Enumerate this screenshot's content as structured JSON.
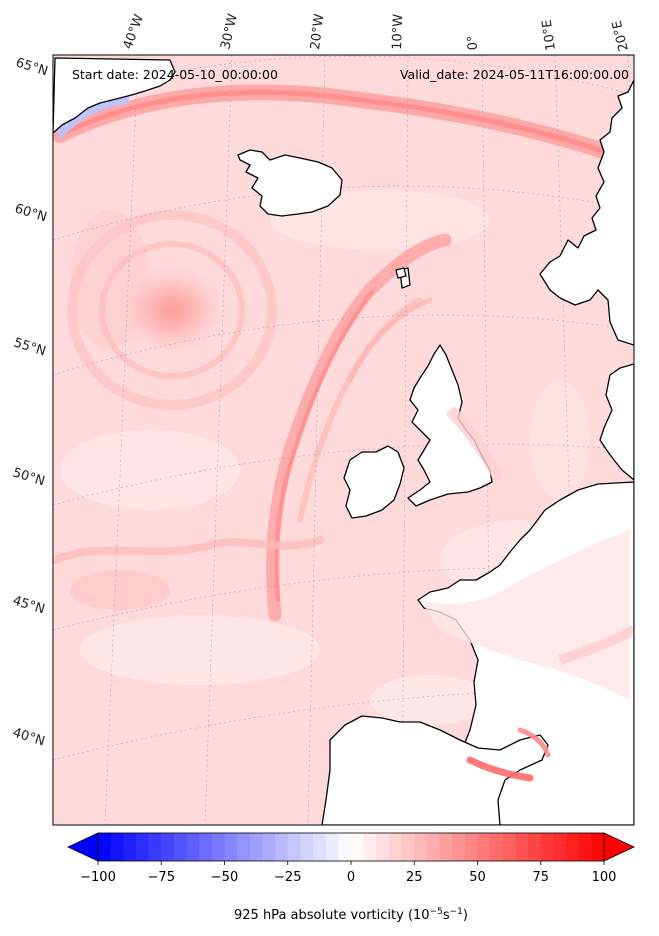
{
  "header": {
    "start_date": "Start date: 2024-05-10_00:00:00",
    "valid_date": "Valid_date: 2024-05-11T16:00:00.00"
  },
  "map": {
    "projection": "conic",
    "lon_labels": [
      "40°W",
      "30°W",
      "20°W",
      "10°W",
      "0°",
      "10°E",
      "20°E"
    ],
    "lat_labels": [
      "65°N",
      "60°N",
      "55°N",
      "50°N",
      "45°N",
      "40°N"
    ],
    "field": "925 hPa absolute vorticity",
    "coastline_color": "#000000",
    "land_mask_color": "#ffffff"
  },
  "colorbar": {
    "colormap": "bwr",
    "min": -100,
    "max": 100,
    "ticks": [
      "−100",
      "−75",
      "−50",
      "−25",
      "0",
      "25",
      "50",
      "75",
      "100"
    ],
    "label": "925 hPa absolute vorticity (10",
    "label_exp1": "−5",
    "label_mid": "s",
    "label_exp2": "−1",
    "label_end": ")",
    "extend": "both",
    "colors": {
      "low": "#0000ff",
      "mid": "#ffffff",
      "high": "#ff0000"
    }
  }
}
